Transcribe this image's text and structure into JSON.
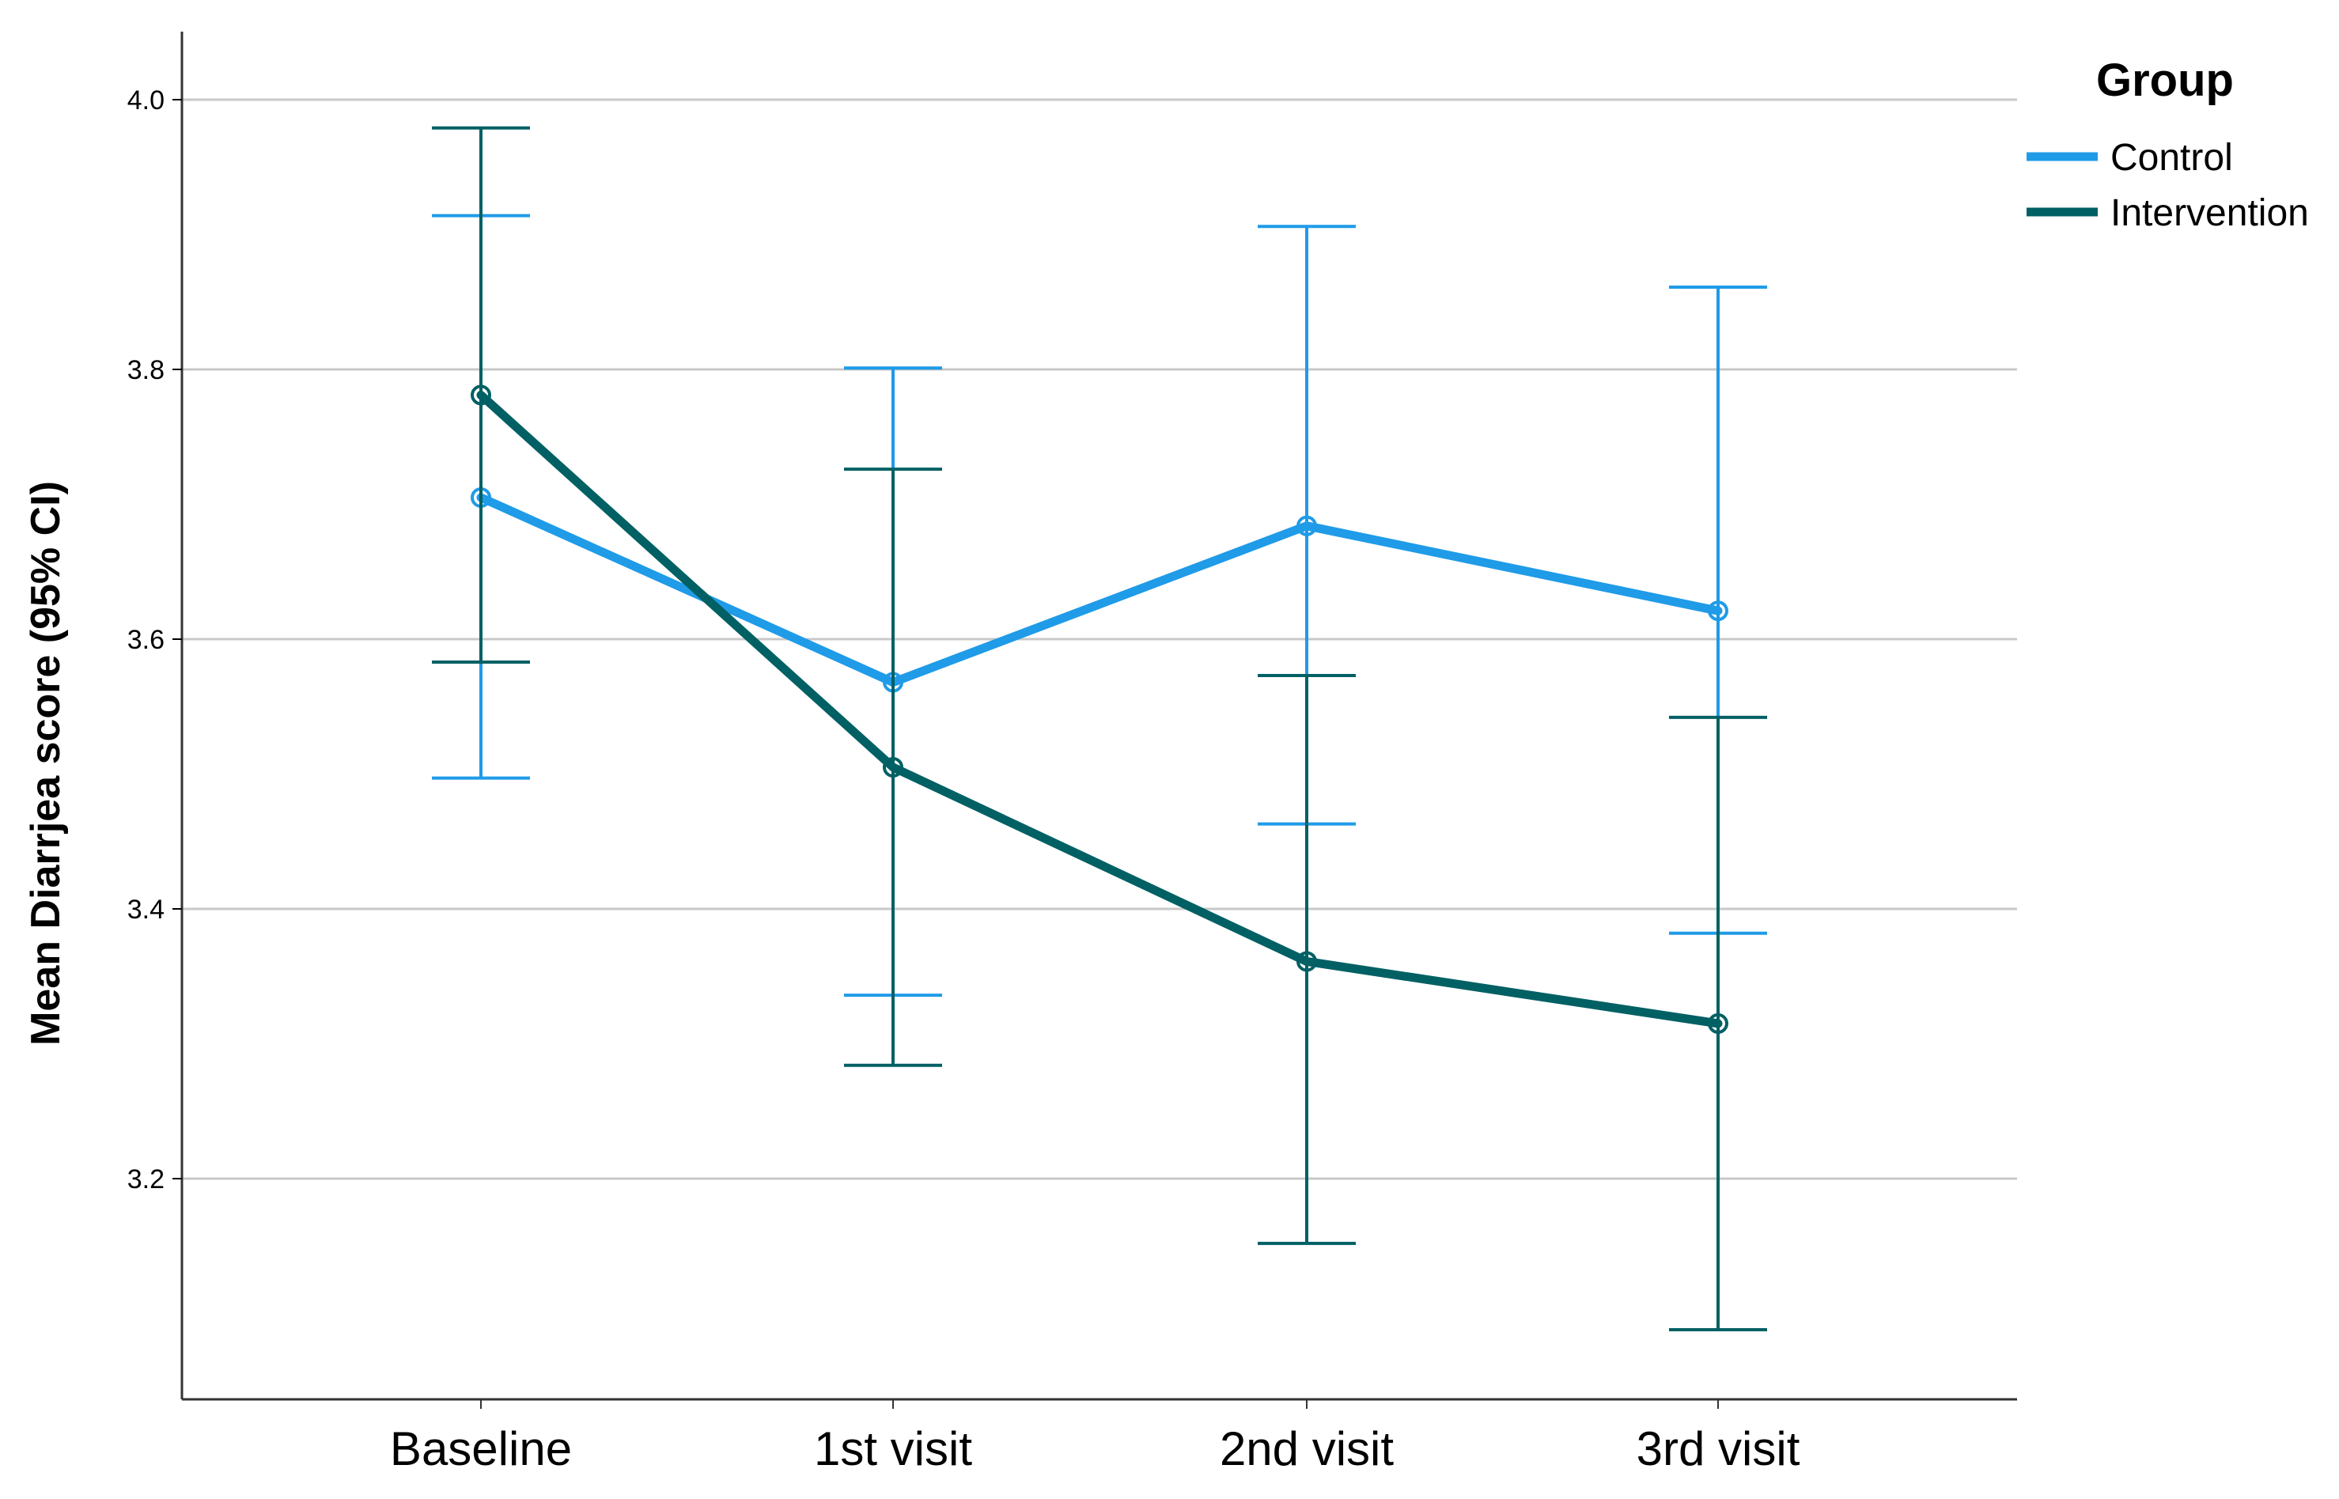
{
  "chart_data": {
    "type": "line",
    "title": "",
    "xlabel": "",
    "ylabel": "Mean Diarrjea score (95% CI)",
    "categories": [
      "Baseline",
      "1st visit",
      "2nd visit",
      "3rd visit"
    ],
    "ylim": [
      3.04,
      4.05
    ],
    "yticks": [
      3.2,
      3.4,
      3.6,
      3.8,
      4.0
    ],
    "ytick_labels": [
      "3.2",
      "3.4",
      "3.6",
      "3.8",
      "4.0"
    ],
    "grid": true,
    "legend": {
      "title": "Group",
      "position": "top-right"
    },
    "series": [
      {
        "name": "Control",
        "color": "#1f9be8",
        "values": [
          3.705,
          3.568,
          3.684,
          3.621
        ],
        "ci_lower": [
          3.497,
          3.336,
          3.463,
          3.382
        ],
        "ci_upper": [
          3.914,
          3.801,
          3.906,
          3.861
        ]
      },
      {
        "name": "Intervention",
        "color": "#006064",
        "values": [
          3.781,
          3.505,
          3.361,
          3.315
        ],
        "ci_lower": [
          3.583,
          3.284,
          3.152,
          3.088
        ],
        "ci_upper": [
          3.979,
          3.726,
          3.573,
          3.542
        ]
      }
    ]
  }
}
